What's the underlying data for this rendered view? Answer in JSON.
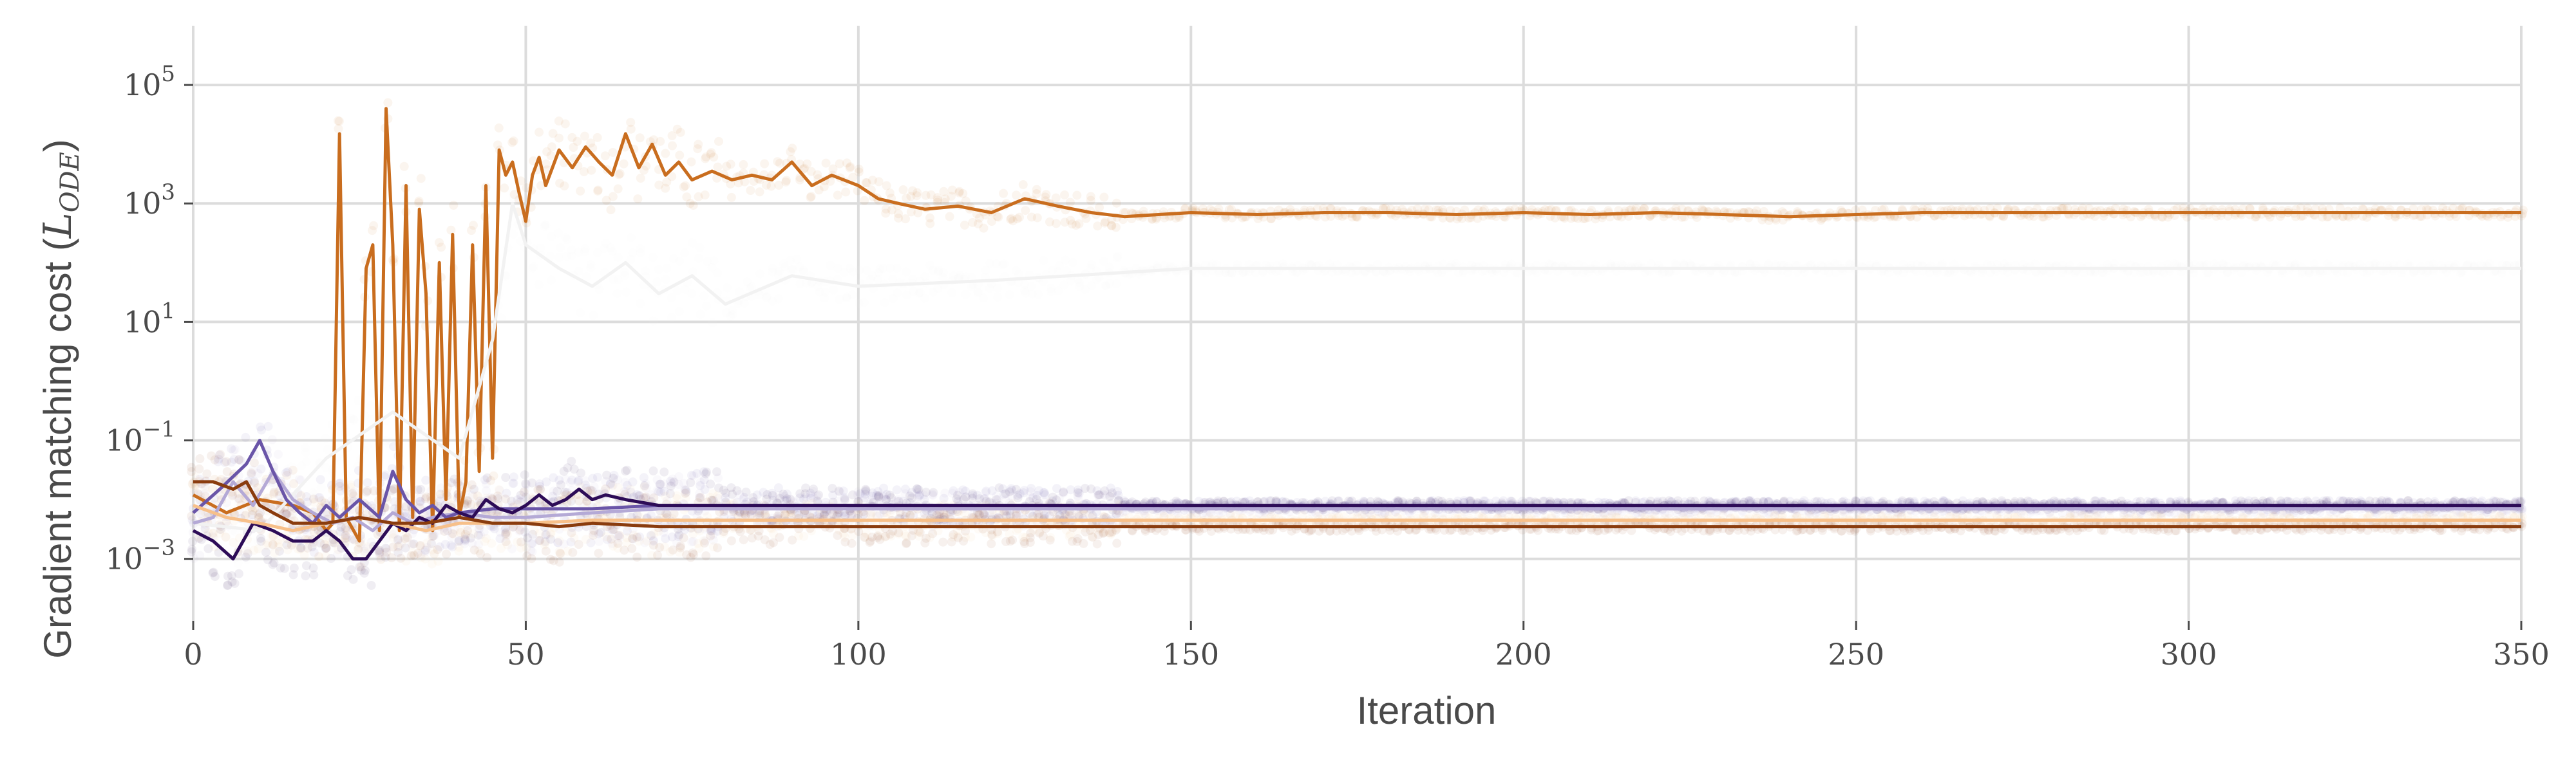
{
  "chart_data": {
    "type": "line",
    "title": "",
    "xlabel": "Iteration",
    "ylabel": {
      "text": "Gradient matching cost (",
      "math": "L",
      "subscript": "ODE",
      "close": ")"
    },
    "xlim": [
      0,
      350
    ],
    "ylim": [
      9e-05,
      1000000
    ],
    "yscale": "log",
    "grid": true,
    "legend": "none",
    "x_ticks": [
      "0",
      "50",
      "100",
      "150",
      "200",
      "250",
      "300",
      "350"
    ],
    "y_ticks": [
      {
        "value": 0.001,
        "base": "10",
        "exp": "−3"
      },
      {
        "value": 0.1,
        "base": "10",
        "exp": "−1"
      },
      {
        "value": 10,
        "base": "10",
        "exp": "1"
      },
      {
        "value": 1000,
        "base": "10",
        "exp": "3"
      },
      {
        "value": 100000,
        "base": "10",
        "exp": "5"
      }
    ],
    "series": [
      {
        "color": "#c96d1e",
        "points": [
          [
            0,
            0.012
          ],
          [
            5,
            0.006
          ],
          [
            10,
            0.01
          ],
          [
            15,
            0.008
          ],
          [
            18,
            0.006
          ],
          [
            20,
            0.003
          ],
          [
            21,
            0.004
          ],
          [
            22,
            15000
          ],
          [
            23,
            0.005
          ],
          [
            25,
            0.002
          ],
          [
            26,
            80
          ],
          [
            27,
            200
          ],
          [
            28,
            0.003
          ],
          [
            29,
            40000
          ],
          [
            30,
            200
          ],
          [
            31,
            0.003
          ],
          [
            32,
            2000
          ],
          [
            33,
            0.005
          ],
          [
            34,
            800
          ],
          [
            35,
            30
          ],
          [
            36,
            0.003
          ],
          [
            37,
            100
          ],
          [
            38,
            0.01
          ],
          [
            39,
            300
          ],
          [
            40,
            0.005
          ],
          [
            41,
            0.02
          ],
          [
            42,
            200
          ],
          [
            43,
            0.03
          ],
          [
            44,
            2000
          ],
          [
            45,
            0.05
          ],
          [
            46,
            8000
          ],
          [
            47,
            3000
          ],
          [
            48,
            5000
          ],
          [
            49,
            1500
          ],
          [
            50,
            500
          ],
          [
            51,
            3000
          ],
          [
            52,
            6000
          ],
          [
            53,
            2000
          ],
          [
            55,
            8000
          ],
          [
            57,
            4000
          ],
          [
            59,
            9000
          ],
          [
            61,
            5000
          ],
          [
            63,
            3000
          ],
          [
            65,
            15000
          ],
          [
            67,
            4000
          ],
          [
            69,
            10000
          ],
          [
            71,
            3000
          ],
          [
            73,
            5000
          ],
          [
            75,
            2500
          ],
          [
            78,
            3500
          ],
          [
            81,
            2500
          ],
          [
            84,
            3000
          ],
          [
            87,
            2500
          ],
          [
            90,
            5000
          ],
          [
            93,
            2000
          ],
          [
            96,
            3000
          ],
          [
            100,
            2000
          ],
          [
            103,
            1200
          ],
          [
            106,
            1000
          ],
          [
            110,
            800
          ],
          [
            115,
            900
          ],
          [
            120,
            700
          ],
          [
            125,
            1200
          ],
          [
            130,
            900
          ],
          [
            135,
            700
          ],
          [
            140,
            600
          ],
          [
            150,
            700
          ],
          [
            160,
            650
          ],
          [
            170,
            700
          ],
          [
            180,
            700
          ],
          [
            190,
            650
          ],
          [
            200,
            700
          ],
          [
            210,
            650
          ],
          [
            220,
            700
          ],
          [
            230,
            650
          ],
          [
            240,
            600
          ],
          [
            250,
            650
          ],
          [
            260,
            700
          ],
          [
            275,
            700
          ],
          [
            300,
            700
          ],
          [
            325,
            700
          ],
          [
            350,
            700
          ]
        ]
      },
      {
        "color": "#f2f2f2",
        "points": [
          [
            0,
            0.004
          ],
          [
            10,
            0.003
          ],
          [
            20,
            0.05
          ],
          [
            30,
            0.3
          ],
          [
            40,
            0.05
          ],
          [
            45,
            5
          ],
          [
            48,
            1000
          ],
          [
            50,
            200
          ],
          [
            55,
            80
          ],
          [
            60,
            40
          ],
          [
            65,
            100
          ],
          [
            70,
            30
          ],
          [
            75,
            60
          ],
          [
            80,
            20
          ],
          [
            90,
            60
          ],
          [
            100,
            40
          ],
          [
            120,
            50
          ],
          [
            150,
            80
          ],
          [
            200,
            80
          ],
          [
            250,
            80
          ],
          [
            300,
            80
          ],
          [
            350,
            80
          ]
        ]
      },
      {
        "color": "#b4a9d6",
        "points": [
          [
            0,
            0.004
          ],
          [
            3,
            0.005
          ],
          [
            6,
            0.02
          ],
          [
            9,
            0.008
          ],
          [
            12,
            0.03
          ],
          [
            15,
            0.01
          ],
          [
            18,
            0.006
          ],
          [
            21,
            0.004
          ],
          [
            24,
            0.005
          ],
          [
            27,
            0.003
          ],
          [
            30,
            0.006
          ],
          [
            33,
            0.004
          ],
          [
            36,
            0.005
          ],
          [
            40,
            0.006
          ],
          [
            45,
            0.005
          ],
          [
            50,
            0.005
          ],
          [
            60,
            0.006
          ],
          [
            70,
            0.007
          ],
          [
            80,
            0.007
          ],
          [
            100,
            0.007
          ],
          [
            150,
            0.007
          ],
          [
            200,
            0.007
          ],
          [
            250,
            0.007
          ],
          [
            300,
            0.007
          ],
          [
            350,
            0.007
          ]
        ]
      },
      {
        "color": "#6a55a8",
        "points": [
          [
            0,
            0.006
          ],
          [
            4,
            0.015
          ],
          [
            8,
            0.04
          ],
          [
            10,
            0.1
          ],
          [
            12,
            0.03
          ],
          [
            14,
            0.01
          ],
          [
            16,
            0.006
          ],
          [
            18,
            0.004
          ],
          [
            20,
            0.008
          ],
          [
            22,
            0.005
          ],
          [
            25,
            0.01
          ],
          [
            28,
            0.005
          ],
          [
            30,
            0.03
          ],
          [
            32,
            0.01
          ],
          [
            34,
            0.006
          ],
          [
            36,
            0.008
          ],
          [
            38,
            0.005
          ],
          [
            40,
            0.006
          ],
          [
            45,
            0.007
          ],
          [
            50,
            0.007
          ],
          [
            60,
            0.007
          ],
          [
            70,
            0.008
          ],
          [
            100,
            0.008
          ],
          [
            150,
            0.008
          ],
          [
            200,
            0.008
          ],
          [
            250,
            0.008
          ],
          [
            300,
            0.008
          ],
          [
            350,
            0.008
          ]
        ]
      },
      {
        "color": "#2d0c57",
        "points": [
          [
            0,
            0.003
          ],
          [
            3,
            0.002
          ],
          [
            6,
            0.001
          ],
          [
            9,
            0.004
          ],
          [
            12,
            0.003
          ],
          [
            15,
            0.002
          ],
          [
            18,
            0.002
          ],
          [
            20,
            0.003
          ],
          [
            22,
            0.002
          ],
          [
            24,
            0.001
          ],
          [
            26,
            0.001
          ],
          [
            28,
            0.002
          ],
          [
            30,
            0.004
          ],
          [
            32,
            0.003
          ],
          [
            34,
            0.005
          ],
          [
            36,
            0.004
          ],
          [
            38,
            0.008
          ],
          [
            40,
            0.006
          ],
          [
            42,
            0.005
          ],
          [
            44,
            0.01
          ],
          [
            46,
            0.007
          ],
          [
            48,
            0.006
          ],
          [
            50,
            0.008
          ],
          [
            52,
            0.012
          ],
          [
            54,
            0.008
          ],
          [
            56,
            0.01
          ],
          [
            58,
            0.015
          ],
          [
            60,
            0.01
          ],
          [
            62,
            0.012
          ],
          [
            65,
            0.01
          ],
          [
            70,
            0.008
          ],
          [
            80,
            0.008
          ],
          [
            100,
            0.008
          ],
          [
            150,
            0.008
          ],
          [
            200,
            0.008
          ],
          [
            250,
            0.008
          ],
          [
            300,
            0.008
          ],
          [
            350,
            0.008
          ]
        ]
      },
      {
        "color": "#f7c08a",
        "points": [
          [
            0,
            0.008
          ],
          [
            5,
            0.005
          ],
          [
            10,
            0.004
          ],
          [
            15,
            0.003
          ],
          [
            20,
            0.004
          ],
          [
            25,
            0.005
          ],
          [
            30,
            0.004
          ],
          [
            35,
            0.003
          ],
          [
            40,
            0.004
          ],
          [
            45,
            0.004
          ],
          [
            50,
            0.004
          ],
          [
            60,
            0.0045
          ],
          [
            70,
            0.0045
          ],
          [
            80,
            0.0045
          ],
          [
            100,
            0.0045
          ],
          [
            150,
            0.0045
          ],
          [
            200,
            0.0045
          ],
          [
            250,
            0.0045
          ],
          [
            300,
            0.0045
          ],
          [
            350,
            0.0045
          ]
        ]
      },
      {
        "color": "#8a3c0e",
        "points": [
          [
            0,
            0.02
          ],
          [
            3,
            0.02
          ],
          [
            6,
            0.015
          ],
          [
            8,
            0.02
          ],
          [
            10,
            0.008
          ],
          [
            12,
            0.006
          ],
          [
            15,
            0.004
          ],
          [
            20,
            0.004
          ],
          [
            25,
            0.005
          ],
          [
            30,
            0.004
          ],
          [
            35,
            0.004
          ],
          [
            40,
            0.005
          ],
          [
            45,
            0.004
          ],
          [
            50,
            0.004
          ],
          [
            55,
            0.0035
          ],
          [
            60,
            0.004
          ],
          [
            70,
            0.0035
          ],
          [
            80,
            0.0035
          ],
          [
            100,
            0.0035
          ],
          [
            150,
            0.0035
          ],
          [
            200,
            0.0035
          ],
          [
            250,
            0.0035
          ],
          [
            300,
            0.0035
          ],
          [
            350,
            0.0035
          ]
        ]
      }
    ]
  }
}
